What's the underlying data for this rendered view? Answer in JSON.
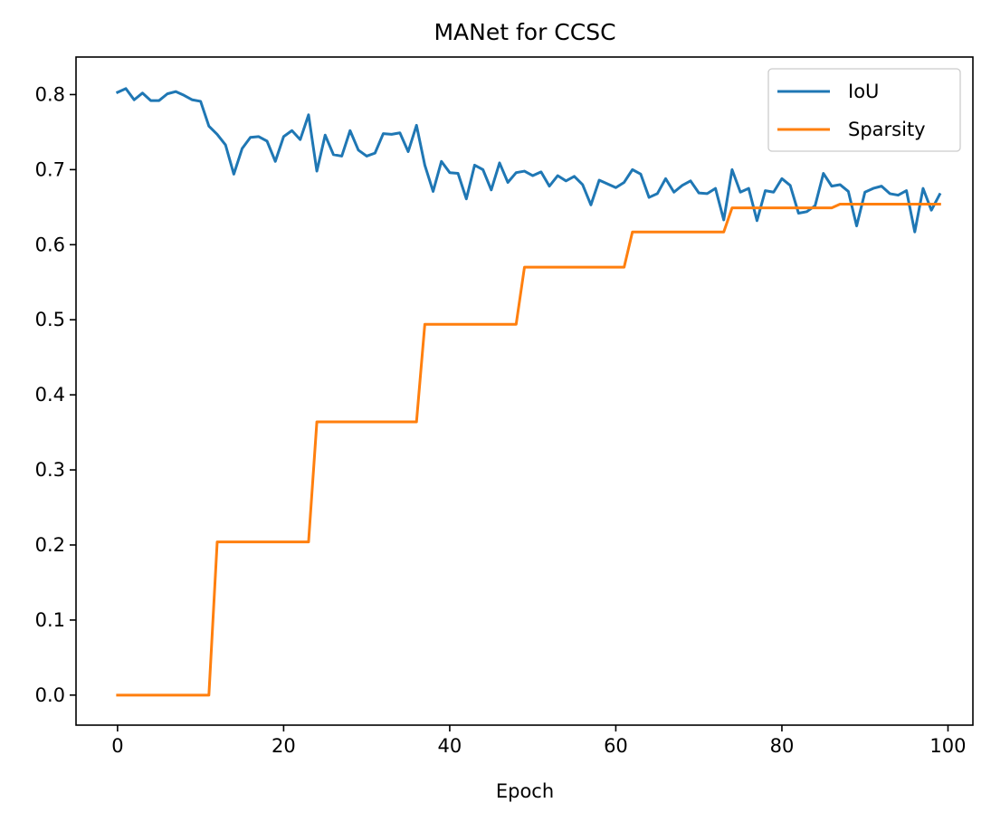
{
  "chart_data": {
    "type": "line",
    "title": "MANet for CCSC",
    "xlabel": "Epoch",
    "ylabel": "",
    "xlim": [
      -5,
      103
    ],
    "ylim": [
      -0.04,
      0.85
    ],
    "xticks": [
      0,
      20,
      40,
      60,
      80,
      100
    ],
    "yticks": [
      0.0,
      0.1,
      0.2,
      0.3,
      0.4,
      0.5,
      0.6,
      0.7,
      0.8
    ],
    "xtick_labels": [
      "0",
      "20",
      "40",
      "60",
      "80",
      "100"
    ],
    "ytick_labels": [
      "0.0",
      "0.1",
      "0.2",
      "0.3",
      "0.4",
      "0.5",
      "0.6",
      "0.7",
      "0.8"
    ],
    "legend_position": "top-right",
    "grid": false,
    "series": [
      {
        "name": "IoU",
        "color": "#1f77b4",
        "x": [
          0,
          1,
          2,
          3,
          4,
          5,
          6,
          7,
          8,
          9,
          10,
          11,
          12,
          13,
          14,
          15,
          16,
          17,
          18,
          19,
          20,
          21,
          22,
          23,
          24,
          25,
          26,
          27,
          28,
          29,
          30,
          31,
          32,
          33,
          34,
          35,
          36,
          37,
          38,
          39,
          40,
          41,
          42,
          43,
          44,
          45,
          46,
          47,
          48,
          49,
          50,
          51,
          52,
          53,
          54,
          55,
          56,
          57,
          58,
          59,
          60,
          61,
          62,
          63,
          64,
          65,
          66,
          67,
          68,
          69,
          70,
          71,
          72,
          73,
          74,
          75,
          76,
          77,
          78,
          79,
          80,
          81,
          82,
          83,
          84,
          85,
          86,
          87,
          88,
          89,
          90,
          91,
          92,
          93,
          94,
          95,
          96,
          97,
          98,
          99
        ],
        "values": [
          0.803,
          0.808,
          0.793,
          0.802,
          0.792,
          0.792,
          0.801,
          0.804,
          0.799,
          0.793,
          0.791,
          0.758,
          0.747,
          0.733,
          0.694,
          0.728,
          0.743,
          0.744,
          0.738,
          0.711,
          0.744,
          0.752,
          0.74,
          0.773,
          0.698,
          0.746,
          0.72,
          0.718,
          0.752,
          0.726,
          0.718,
          0.722,
          0.748,
          0.747,
          0.749,
          0.724,
          0.759,
          0.706,
          0.671,
          0.711,
          0.696,
          0.695,
          0.661,
          0.706,
          0.7,
          0.673,
          0.709,
          0.683,
          0.696,
          0.698,
          0.692,
          0.697,
          0.678,
          0.692,
          0.685,
          0.691,
          0.68,
          0.653,
          0.686,
          0.681,
          0.676,
          0.683,
          0.7,
          0.694,
          0.663,
          0.668,
          0.688,
          0.67,
          0.679,
          0.685,
          0.669,
          0.668,
          0.675,
          0.633,
          0.7,
          0.67,
          0.675,
          0.632,
          0.672,
          0.67,
          0.688,
          0.679,
          0.642,
          0.644,
          0.652,
          0.695,
          0.678,
          0.68,
          0.671,
          0.625,
          0.67,
          0.675,
          0.678,
          0.668,
          0.666,
          0.672,
          0.617,
          0.675,
          0.646,
          0.667
        ]
      },
      {
        "name": "Sparsity",
        "color": "#ff7f0e",
        "x": [
          0,
          1,
          2,
          3,
          4,
          5,
          6,
          7,
          8,
          9,
          10,
          11,
          12,
          13,
          14,
          15,
          16,
          17,
          18,
          19,
          20,
          21,
          22,
          23,
          24,
          25,
          26,
          27,
          28,
          29,
          30,
          31,
          32,
          33,
          34,
          35,
          36,
          37,
          38,
          39,
          40,
          41,
          42,
          43,
          44,
          45,
          46,
          47,
          48,
          49,
          50,
          51,
          52,
          53,
          54,
          55,
          56,
          57,
          58,
          59,
          60,
          61,
          62,
          63,
          64,
          65,
          66,
          67,
          68,
          69,
          70,
          71,
          72,
          73,
          74,
          75,
          76,
          77,
          78,
          79,
          80,
          81,
          82,
          83,
          84,
          85,
          86,
          87,
          88,
          89,
          90,
          91,
          92,
          93,
          94,
          95,
          96,
          97,
          98,
          99
        ],
        "values": [
          0,
          0,
          0,
          0,
          0,
          0,
          0,
          0,
          0,
          0,
          0,
          0,
          0.204,
          0.204,
          0.204,
          0.204,
          0.204,
          0.204,
          0.204,
          0.204,
          0.204,
          0.204,
          0.204,
          0.204,
          0.364,
          0.364,
          0.364,
          0.364,
          0.364,
          0.364,
          0.364,
          0.364,
          0.364,
          0.364,
          0.364,
          0.364,
          0.364,
          0.494,
          0.494,
          0.494,
          0.494,
          0.494,
          0.494,
          0.494,
          0.494,
          0.494,
          0.494,
          0.494,
          0.494,
          0.57,
          0.57,
          0.57,
          0.57,
          0.57,
          0.57,
          0.57,
          0.57,
          0.57,
          0.57,
          0.57,
          0.57,
          0.57,
          0.617,
          0.617,
          0.617,
          0.617,
          0.617,
          0.617,
          0.617,
          0.617,
          0.617,
          0.617,
          0.617,
          0.617,
          0.649,
          0.649,
          0.649,
          0.649,
          0.649,
          0.649,
          0.649,
          0.649,
          0.649,
          0.649,
          0.649,
          0.649,
          0.649,
          0.654,
          0.654,
          0.654,
          0.654,
          0.654,
          0.654,
          0.654,
          0.654,
          0.654,
          0.654,
          0.654,
          0.654,
          0.654
        ]
      }
    ]
  }
}
